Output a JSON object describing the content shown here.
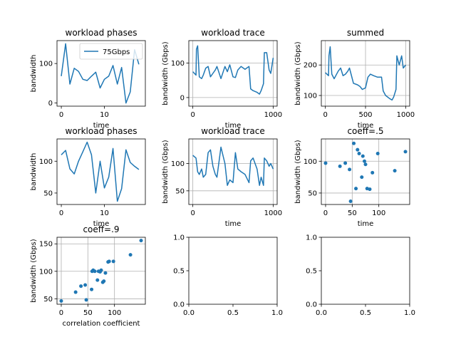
{
  "colors": {
    "series": "#1f77b4",
    "grid": "#b0b0b0",
    "axis": "#000000"
  },
  "chart_data": [
    {
      "id": "p1",
      "type": "line",
      "title": "workload phases",
      "xlabel": "time",
      "ylabel": "bandwidth",
      "xlim": [
        -1,
        19.5
      ],
      "ylim": [
        -8,
        158
      ],
      "xticks": [
        0,
        10
      ],
      "yticks": [
        0,
        100
      ],
      "grid": false,
      "legend": {
        "location": "upper-right",
        "entries": [
          "75Gbps"
        ]
      },
      "series": [
        {
          "name": "75Gbps",
          "x": [
            0,
            1,
            2,
            3,
            4,
            5,
            6,
            7,
            8,
            9,
            10,
            11,
            12,
            13,
            14,
            15,
            16,
            17,
            18
          ],
          "y": [
            68,
            150,
            48,
            88,
            80,
            60,
            57,
            68,
            78,
            38,
            60,
            68,
            95,
            48,
            90,
            0,
            28,
            135,
            98
          ]
        }
      ]
    },
    {
      "id": "p2",
      "type": "line",
      "title": "workload trace",
      "xlabel": "time",
      "ylabel": "bandwidth (Gbps)",
      "xlim": [
        -50,
        1050
      ],
      "ylim": [
        -25,
        165
      ],
      "xticks": [
        0,
        1000
      ],
      "yticks": [
        0,
        100
      ],
      "grid": true,
      "series": [
        {
          "x": [
            0,
            40,
            45,
            60,
            80,
            110,
            130,
            160,
            190,
            220,
            250,
            280,
            300,
            350,
            400,
            430,
            460,
            500,
            530,
            560,
            600,
            650,
            700,
            720,
            750,
            800,
            830,
            850,
            880,
            890,
            920,
            950,
            970,
            1000
          ],
          "y": [
            75,
            65,
            140,
            150,
            60,
            55,
            65,
            85,
            90,
            60,
            70,
            80,
            90,
            55,
            90,
            75,
            95,
            60,
            58,
            80,
            90,
            82,
            90,
            25,
            20,
            15,
            10,
            20,
            40,
            130,
            130,
            80,
            70,
            115
          ]
        }
      ]
    },
    {
      "id": "p3",
      "type": "line",
      "title": "summed",
      "xlabel": "time",
      "ylabel": "bandwidth (Gbps)",
      "xlim": [
        -50,
        1050
      ],
      "ylim": [
        65,
        280
      ],
      "xticks": [
        0,
        500,
        1000
      ],
      "yticks": [
        100,
        200
      ],
      "grid": true,
      "series": [
        {
          "x": [
            0,
            40,
            45,
            60,
            80,
            110,
            130,
            160,
            190,
            220,
            250,
            280,
            300,
            350,
            400,
            430,
            460,
            500,
            530,
            560,
            600,
            650,
            700,
            720,
            750,
            800,
            830,
            850,
            880,
            890,
            920,
            950,
            970,
            1000
          ],
          "y": [
            175,
            165,
            230,
            260,
            170,
            155,
            165,
            180,
            190,
            165,
            170,
            180,
            190,
            140,
            135,
            130,
            120,
            125,
            160,
            170,
            165,
            160,
            160,
            115,
            100,
            90,
            85,
            95,
            120,
            230,
            200,
            230,
            190,
            200
          ]
        }
      ]
    },
    {
      "id": "p4",
      "type": "line",
      "title": "workload phases",
      "xlabel": "time",
      "ylabel": "bandwidth",
      "xlim": [
        -1,
        19.5
      ],
      "ylim": [
        32,
        135
      ],
      "xticks": [
        0,
        10
      ],
      "yticks": [
        50,
        100
      ],
      "grid": false,
      "series": [
        {
          "x": [
            0,
            1,
            2,
            3,
            4,
            5,
            6,
            7,
            8,
            9,
            10,
            11,
            12,
            13,
            14,
            15,
            16,
            17,
            18
          ],
          "y": [
            110,
            117,
            88,
            80,
            100,
            115,
            130,
            110,
            50,
            100,
            58,
            75,
            120,
            37,
            57,
            118,
            98,
            92,
            87
          ]
        }
      ]
    },
    {
      "id": "p5",
      "type": "line",
      "title": "workload trace",
      "xlabel": "time",
      "ylabel": "bandwidth (Gbps)",
      "xlim": [
        -50,
        1050
      ],
      "ylim": [
        25,
        145
      ],
      "xticks": [
        0,
        1000
      ],
      "yticks": [
        50,
        100
      ],
      "grid": true,
      "series": [
        {
          "x": [
            0,
            40,
            60,
            80,
            110,
            130,
            160,
            190,
            220,
            250,
            280,
            300,
            350,
            400,
            430,
            460,
            500,
            530,
            560,
            600,
            650,
            700,
            720,
            750,
            800,
            830,
            850,
            880,
            890,
            920,
            950,
            970,
            1000
          ],
          "y": [
            115,
            110,
            85,
            80,
            90,
            75,
            80,
            120,
            125,
            95,
            80,
            75,
            130,
            100,
            60,
            70,
            65,
            120,
            90,
            85,
            80,
            65,
            105,
            110,
            90,
            60,
            75,
            60,
            110,
            105,
            95,
            100,
            90
          ]
        }
      ]
    },
    {
      "id": "p6",
      "type": "scatter",
      "title": "coeff=.5",
      "xlabel": "time",
      "ylabel": "bandwidth (Gbps)",
      "xlim": [
        -8,
        158
      ],
      "ylim": [
        32,
        135
      ],
      "xticks": [
        0,
        50,
        100
      ],
      "yticks": [
        50,
        100
      ],
      "grid": true,
      "series": [
        {
          "x": [
            0,
            27,
            37,
            45,
            47,
            53,
            57,
            60,
            63,
            68,
            70,
            73,
            75,
            78,
            83,
            88,
            98,
            130,
            150
          ],
          "y": [
            97,
            92,
            97,
            87,
            37,
            128,
            57,
            118,
            112,
            75,
            108,
            100,
            95,
            57,
            56,
            82,
            112,
            85,
            115
          ]
        }
      ]
    },
    {
      "id": "p7",
      "type": "scatter",
      "title": "coeff=.9",
      "xlabel": "correlation coefficient",
      "ylabel": "bandwidth (Gbps)",
      "xlim": [
        -8,
        158
      ],
      "ylim": [
        40,
        162
      ],
      "xticks": [
        0,
        50,
        100
      ],
      "yticks": [
        50,
        100,
        150
      ],
      "grid": true,
      "series": [
        {
          "x": [
            0,
            27,
            37,
            45,
            47,
            57,
            58,
            60,
            63,
            68,
            70,
            73,
            75,
            78,
            80,
            83,
            88,
            90,
            98,
            130,
            150
          ],
          "y": [
            46,
            62,
            73,
            75,
            48,
            67,
            100,
            102,
            100,
            84,
            100,
            99,
            102,
            80,
            82,
            97,
            117,
            118,
            118,
            130,
            156
          ]
        }
      ]
    },
    {
      "id": "p8",
      "type": "line",
      "title": "",
      "xlabel": "",
      "ylabel": "",
      "xlim": [
        0,
        1
      ],
      "ylim": [
        0,
        1
      ],
      "xticks": [
        0.0,
        0.5,
        1.0
      ],
      "yticks": [
        0.0,
        0.5,
        1.0
      ],
      "grid": false,
      "series": []
    },
    {
      "id": "p9",
      "type": "line",
      "title": "",
      "xlabel": "",
      "ylabel": "",
      "xlim": [
        0,
        1
      ],
      "ylim": [
        0,
        1
      ],
      "xticks": [
        0.0,
        0.5,
        1.0
      ],
      "yticks": [
        0.0,
        0.5,
        1.0
      ],
      "grid": false,
      "series": []
    }
  ]
}
